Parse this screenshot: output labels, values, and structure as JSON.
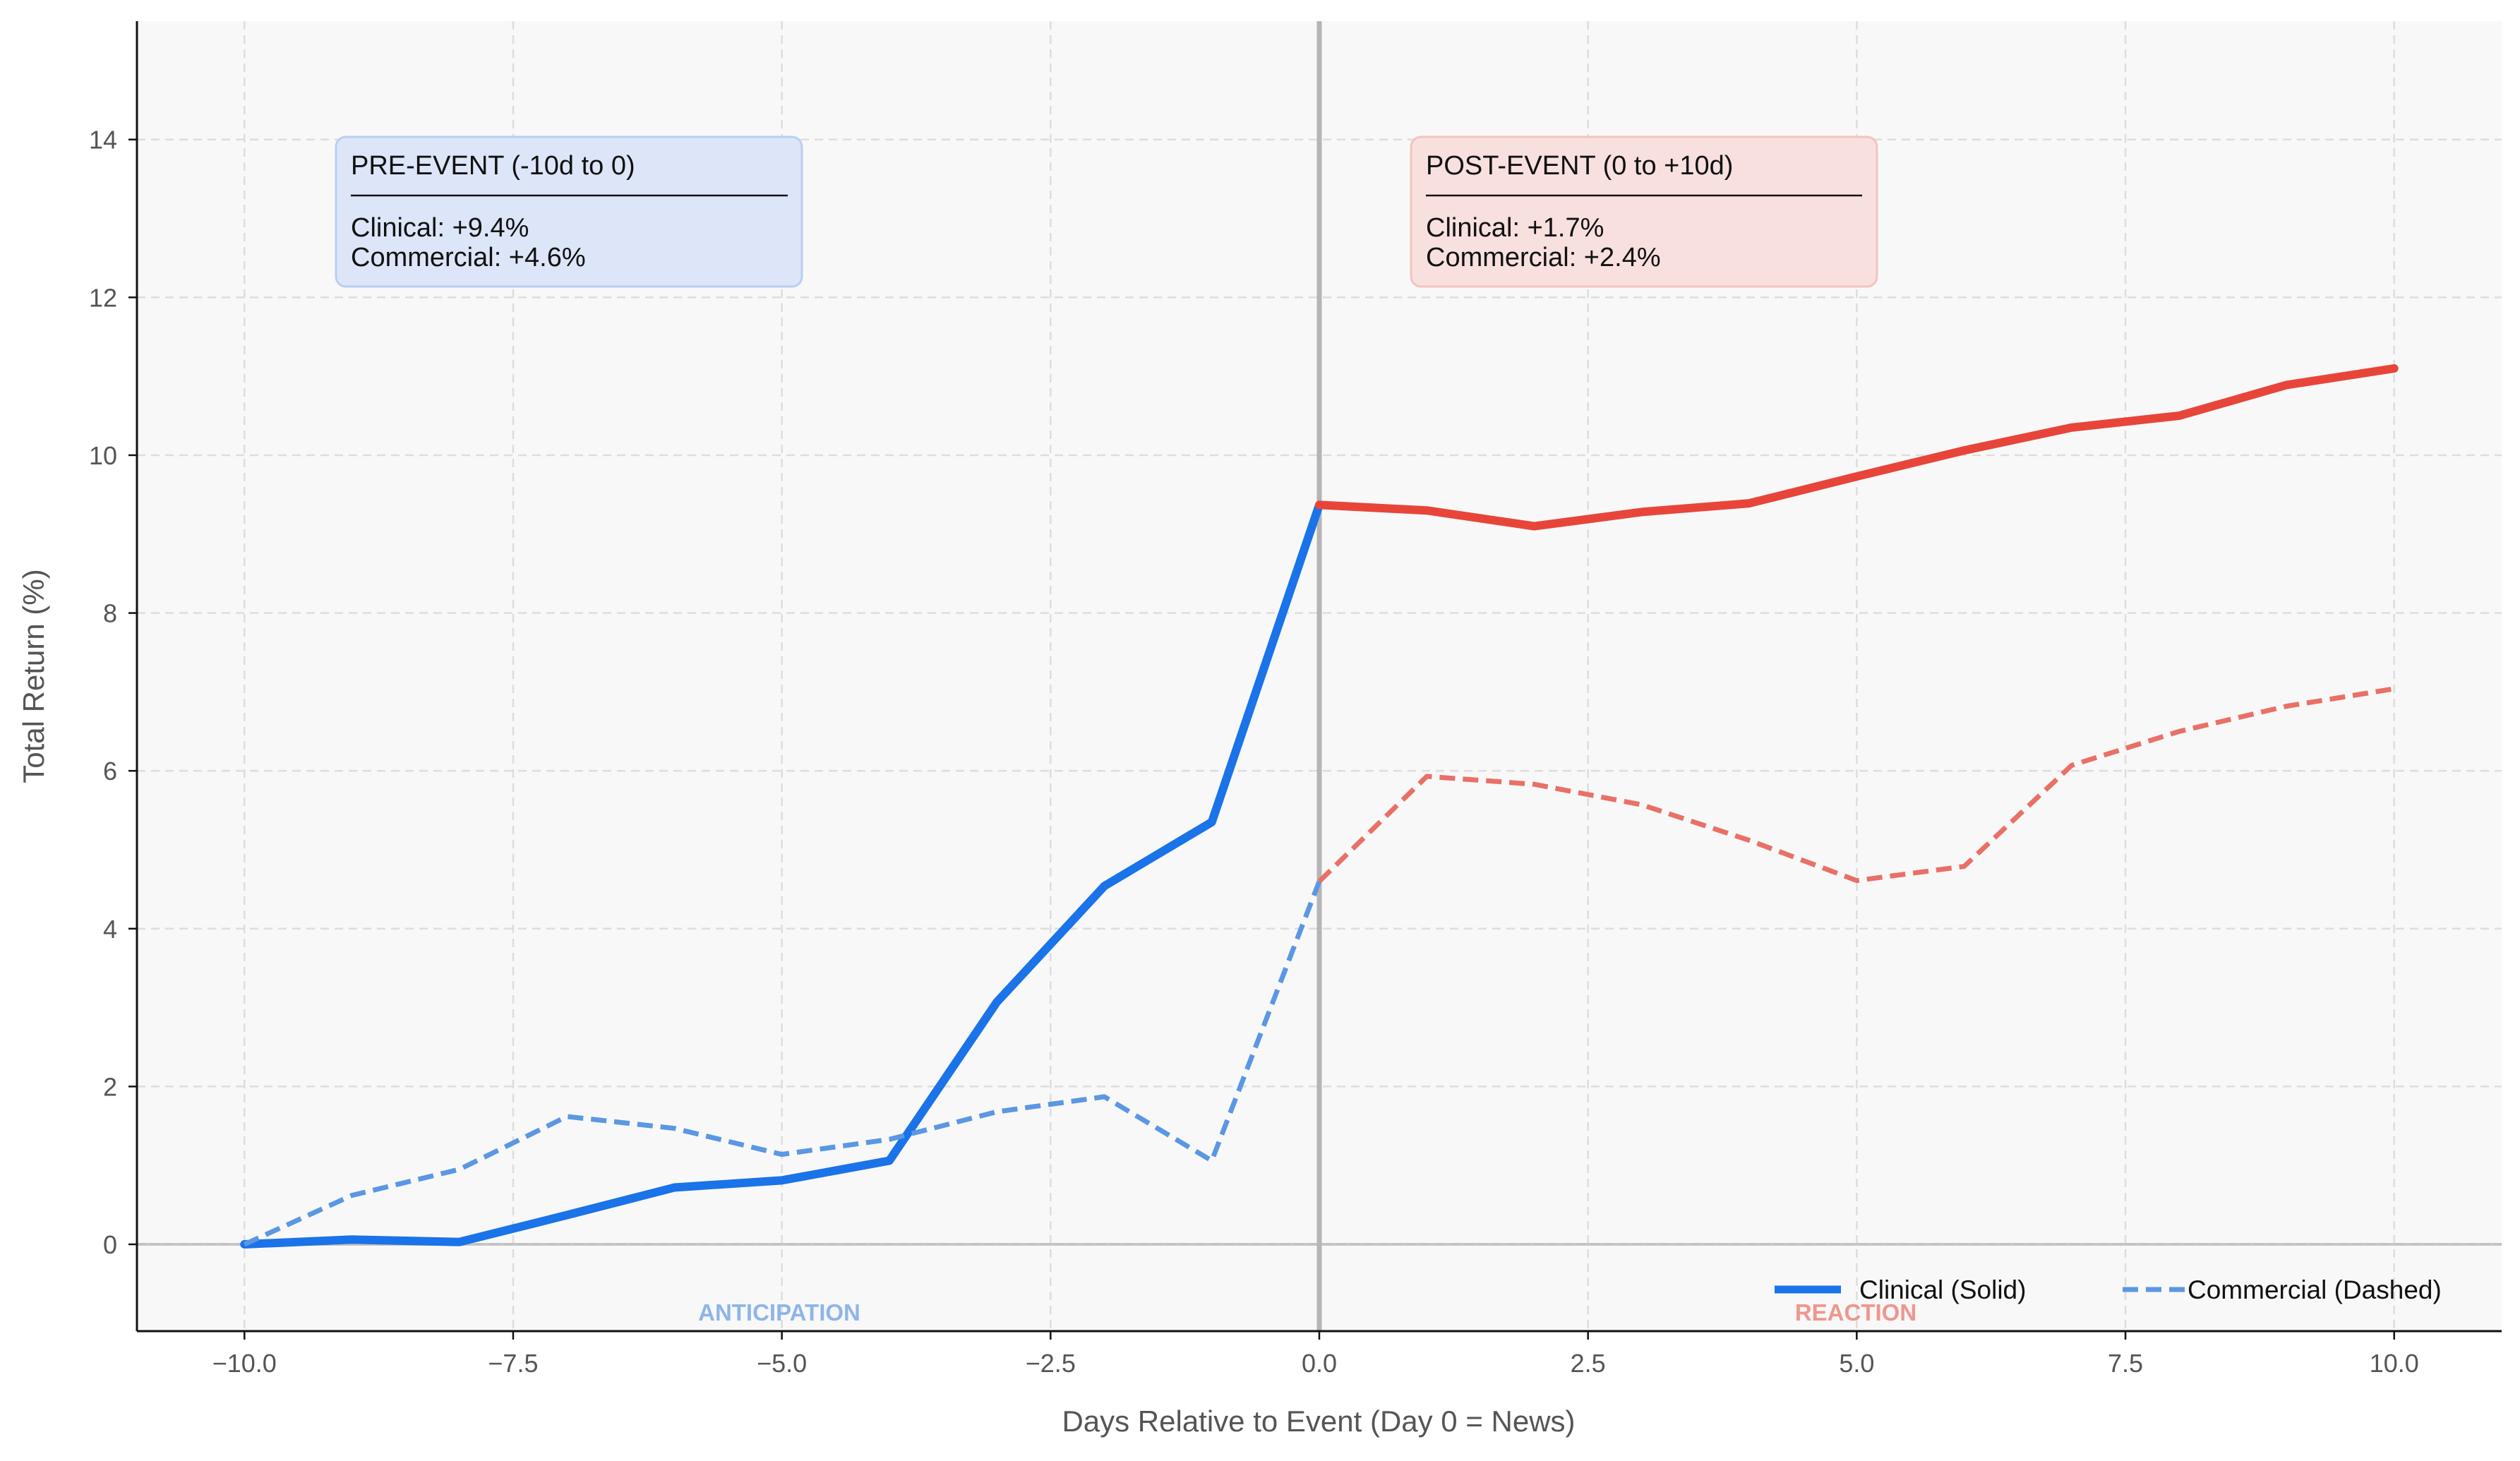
{
  "chart_data": {
    "type": "line",
    "xlabel": "Days Relative to Event (Day 0 = News)",
    "ylabel": "Total Return (%)",
    "xlim": [
      -11,
      11
    ],
    "ylim": [
      -1.1,
      15.5
    ],
    "xticks": [
      -10,
      -7.5,
      -5,
      -2.5,
      0,
      2.5,
      5,
      7.5,
      10
    ],
    "xtick_labels": [
      "−10.0",
      "−7.5",
      "−5.0",
      "−2.5",
      "0.0",
      "2.5",
      "5.0",
      "7.5",
      "10.0"
    ],
    "yticks": [
      0,
      2,
      4,
      6,
      8,
      10,
      12,
      14
    ],
    "ytick_labels": [
      "0",
      "2",
      "4",
      "6",
      "8",
      "10",
      "12",
      "14"
    ],
    "grid": true,
    "event_line_x": 0,
    "series": [
      {
        "name": "Clinical (Solid)",
        "style": "solid",
        "phase": "pre",
        "color": "#1a73e8",
        "x": [
          -10,
          -9,
          -8,
          -7,
          -6,
          -5,
          -4,
          -3,
          -2,
          -1,
          0
        ],
        "y": [
          0.0,
          0.06,
          0.03,
          0.37,
          0.72,
          0.81,
          1.06,
          3.07,
          4.54,
          5.35,
          9.37
        ]
      },
      {
        "name": "Commercial (Dashed)",
        "style": "dashed",
        "phase": "pre",
        "color": "#5b97e3",
        "x": [
          -10,
          -9,
          -8,
          -7,
          -6,
          -5,
          -4,
          -3,
          -2,
          -1,
          0
        ],
        "y": [
          0.0,
          0.62,
          0.95,
          1.62,
          1.47,
          1.14,
          1.33,
          1.68,
          1.87,
          1.06,
          4.6
        ]
      },
      {
        "style": "solid",
        "phase": "post",
        "color": "#e8453a",
        "x": [
          0,
          1,
          2,
          3,
          4,
          5,
          6,
          7,
          8,
          9,
          10
        ],
        "y": [
          9.37,
          9.3,
          9.1,
          9.28,
          9.39,
          9.73,
          10.06,
          10.35,
          10.5,
          10.89,
          11.1
        ]
      },
      {
        "style": "dashed",
        "phase": "post",
        "color": "#e97067",
        "x": [
          0,
          1,
          2,
          3,
          4,
          5,
          6,
          7,
          8,
          9,
          10
        ],
        "y": [
          4.6,
          5.93,
          5.83,
          5.57,
          5.12,
          4.61,
          4.79,
          6.07,
          6.5,
          6.82,
          7.04
        ]
      }
    ],
    "annotations": {
      "pre": {
        "title": "PRE-EVENT (-10d to 0)",
        "line1": "Clinical: +9.4%",
        "line2": "Commercial: +4.6%",
        "fill": "#dce6f8",
        "stroke": "#b9cff0"
      },
      "post": {
        "title": "POST-EVENT (0 to +10d)",
        "line1": "Clinical: +1.7%",
        "line2": "Commercial: +2.4%",
        "fill": "#f8e0de",
        "stroke": "#f2c4bf"
      }
    },
    "region_labels": {
      "pre": {
        "text": "ANTICIPATION",
        "color": "#8fb5e8"
      },
      "post": {
        "text": "REACTION",
        "color": "#ef968f"
      }
    },
    "legend": {
      "position": "bottom-right",
      "items": [
        {
          "label": "Clinical (Solid)",
          "style": "solid",
          "color": "#1a73e8"
        },
        {
          "label": "Commercial (Dashed)",
          "style": "dashed",
          "color": "#5b97e3"
        }
      ]
    }
  }
}
